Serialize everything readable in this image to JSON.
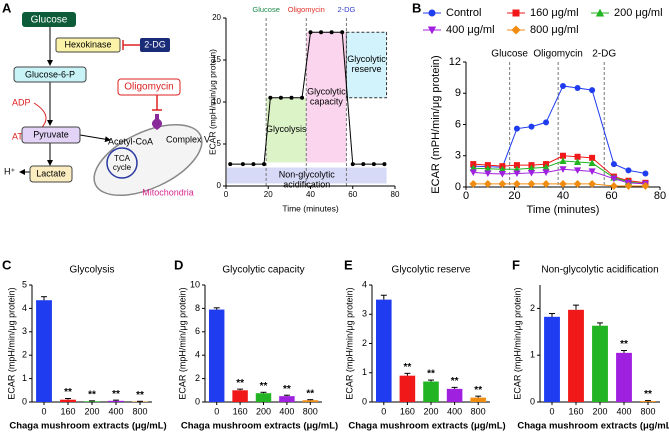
{
  "panel_labels": [
    "A",
    "B",
    "C",
    "D",
    "E",
    "F"
  ],
  "diagram": {
    "labels": [
      "Glucose",
      "Hexokinase",
      "2-DG",
      "Glucose-6-P",
      "ADP",
      "ATP",
      "Pyruvate",
      "H⁺",
      "Lactate",
      "Oligomycin",
      "Complex V",
      "Acetyl-CoA",
      "TCA cycle",
      "Mitochondria"
    ]
  },
  "chart_data": [
    {
      "type": "line",
      "xlabel": "Time (minutes)",
      "ylabel": "ECAR (mpH/min/μg protein)",
      "xlim": [
        0,
        80
      ],
      "xticks": [
        0,
        20,
        40,
        60,
        80
      ],
      "ylim": [
        0,
        20
      ],
      "yticks": [
        0,
        5,
        10,
        15,
        20
      ],
      "series": [
        {
          "color": "#000000",
          "marker": "circle",
          "x": [
            2,
            8,
            13,
            18,
            21,
            26,
            31,
            36,
            40,
            45,
            50,
            55,
            60,
            65,
            70,
            75
          ],
          "values": [
            2.6,
            2.6,
            2.6,
            2.6,
            10.5,
            10.5,
            10.5,
            10.5,
            18.3,
            18.3,
            18.3,
            18.3,
            2.6,
            2.6,
            2.6,
            2.6
          ]
        }
      ],
      "injections": [
        {
          "label": "Glucose",
          "x": 19,
          "color": "#1a8a4a"
        },
        {
          "label": "Oligomycin",
          "x": 38,
          "color": "#e0302a"
        },
        {
          "label": "2-DG",
          "x": 57,
          "color": "#3340c8"
        }
      ],
      "regions": [
        {
          "label": "Non-glycolytic acidification",
          "x": [
            0.5,
            76
          ],
          "y": [
            0.3,
            2.2
          ],
          "color": "#d6daf7"
        },
        {
          "label": "Glycolysis",
          "x": [
            19,
            38
          ],
          "y": [
            2.8,
            10.5
          ],
          "color": "#dcf3c8"
        },
        {
          "label": "Glycolytic capacity",
          "x": [
            38,
            57
          ],
          "y": [
            2.8,
            18.3
          ],
          "color": "#fbd5ee"
        },
        {
          "label": "Glycolytic reserve",
          "x": [
            57,
            76
          ],
          "y": [
            10.5,
            18.3
          ],
          "color": "#d2f3fb"
        }
      ]
    },
    {
      "type": "line",
      "xlabel": "Time (minutes)",
      "ylabel": "ECAR (mPH/min/μg protein)",
      "xlim": [
        0,
        80
      ],
      "xticks": [
        0,
        20,
        40,
        60,
        80
      ],
      "ylim": [
        0,
        12
      ],
      "yticks": [
        0,
        3,
        6,
        9,
        12
      ],
      "injections": [
        {
          "label": "Glucose",
          "x": 18,
          "color": "#000000"
        },
        {
          "label": "Oligomycin",
          "x": 38,
          "color": "#000000"
        },
        {
          "label": "2-DG",
          "x": 57,
          "color": "#000000"
        }
      ],
      "series": [
        {
          "name": "Control",
          "color": "#1f3cf0",
          "marker": "circle",
          "x": [
            3,
            9,
            15,
            21,
            27,
            33,
            40,
            46,
            52,
            61,
            67,
            74
          ],
          "values": [
            2.0,
            1.95,
            1.9,
            5.6,
            5.8,
            6.2,
            9.7,
            9.5,
            9.3,
            2.2,
            1.6,
            1.3
          ]
        },
        {
          "name": "160 μg/ml",
          "color": "#f01818",
          "marker": "square",
          "x": [
            3,
            9,
            15,
            21,
            27,
            33,
            40,
            46,
            52,
            61,
            67,
            74
          ],
          "values": [
            2.2,
            2.1,
            2.0,
            2.1,
            2.1,
            2.2,
            3.0,
            2.9,
            2.8,
            1.0,
            0.6,
            0.4
          ]
        },
        {
          "name": "200 μg/ml",
          "color": "#22b422",
          "marker": "triangle",
          "x": [
            3,
            9,
            15,
            21,
            27,
            33,
            40,
            46,
            52,
            61,
            67,
            74
          ],
          "values": [
            1.8,
            1.75,
            1.7,
            1.7,
            1.8,
            1.9,
            2.5,
            2.4,
            2.3,
            0.9,
            0.5,
            0.3
          ]
        },
        {
          "name": "400 μg/ml",
          "color": "#a020e0",
          "marker": "triangle-down",
          "x": [
            3,
            9,
            15,
            21,
            27,
            33,
            40,
            46,
            52,
            61,
            67,
            74
          ],
          "values": [
            1.4,
            1.3,
            1.25,
            1.3,
            1.35,
            1.4,
            1.7,
            1.6,
            1.5,
            0.8,
            0.4,
            0.3
          ]
        },
        {
          "name": "800 μg/ml",
          "color": "#f08c10",
          "marker": "diamond",
          "x": [
            3,
            9,
            15,
            21,
            27,
            33,
            40,
            46,
            52,
            61,
            67,
            74
          ],
          "values": [
            0.3,
            0.3,
            0.3,
            0.3,
            0.3,
            0.3,
            0.3,
            0.3,
            0.3,
            0.1,
            0.1,
            0.1
          ]
        }
      ]
    },
    {
      "type": "bar",
      "title": "Glycolysis",
      "xlabel": "Chaga mushroom extracts (μg/mL)",
      "ylabel": "ECAR (mpH/min/μg protein)",
      "categories": [
        "0",
        "160",
        "200",
        "400",
        "800"
      ],
      "values": [
        4.35,
        0.1,
        0.03,
        0.05,
        0.02
      ],
      "errors": [
        0.15,
        0.05,
        0.02,
        0.03,
        0.01
      ],
      "significance": [
        null,
        "**",
        "**",
        "**",
        "**"
      ],
      "colors": [
        "#1f3cf0",
        "#f01818",
        "#22b422",
        "#a020e0",
        "#f08c10"
      ],
      "ylim": [
        0,
        5
      ],
      "yticks": [
        0,
        1,
        2,
        3,
        4,
        5
      ]
    },
    {
      "type": "bar",
      "title": "Glycolytic capacity",
      "xlabel": "Chaga mushroom extracts (μg/mL)",
      "ylabel": "ECAR (mpH/min/μg protein)",
      "categories": [
        "0",
        "160",
        "200",
        "400",
        "800"
      ],
      "values": [
        7.9,
        1.0,
        0.75,
        0.5,
        0.15
      ],
      "errors": [
        0.15,
        0.1,
        0.08,
        0.08,
        0.05
      ],
      "significance": [
        null,
        "**",
        "**",
        "**",
        "**"
      ],
      "colors": [
        "#1f3cf0",
        "#f01818",
        "#22b422",
        "#a020e0",
        "#f08c10"
      ],
      "ylim": [
        0,
        10
      ],
      "yticks": [
        0,
        2,
        4,
        6,
        8,
        10
      ]
    },
    {
      "type": "bar",
      "title": "Glycolytic reserve",
      "xlabel": "Chaga mushroom extracts (μg/mL)",
      "ylabel": "ECAR (mpH/min/μg protein)",
      "categories": [
        "0",
        "160",
        "200",
        "400",
        "800"
      ],
      "values": [
        3.5,
        0.9,
        0.7,
        0.45,
        0.15
      ],
      "errors": [
        0.15,
        0.08,
        0.05,
        0.05,
        0.05
      ],
      "significance": [
        null,
        "**",
        "**",
        "**",
        "**"
      ],
      "colors": [
        "#1f3cf0",
        "#f01818",
        "#22b422",
        "#a020e0",
        "#f08c10"
      ],
      "ylim": [
        0,
        4
      ],
      "yticks": [
        0,
        1,
        2,
        3,
        4
      ]
    },
    {
      "type": "bar",
      "title": "Non-glycolytic acidification",
      "xlabel": "Chaga mushroom extracts (μg/mL)",
      "ylabel": "ECAR (mpH/min/μg protein)",
      "categories": [
        "0",
        "160",
        "200",
        "400",
        "800"
      ],
      "values": [
        1.82,
        1.97,
        1.63,
        1.05,
        0.02
      ],
      "errors": [
        0.07,
        0.1,
        0.06,
        0.05,
        0.01
      ],
      "significance": [
        null,
        null,
        null,
        "**",
        "**"
      ],
      "colors": [
        "#1f3cf0",
        "#f01818",
        "#22b422",
        "#a020e0",
        "#f08c10"
      ],
      "ylim": [
        0,
        2.5
      ],
      "yticks": [
        0,
        1,
        2
      ]
    }
  ]
}
